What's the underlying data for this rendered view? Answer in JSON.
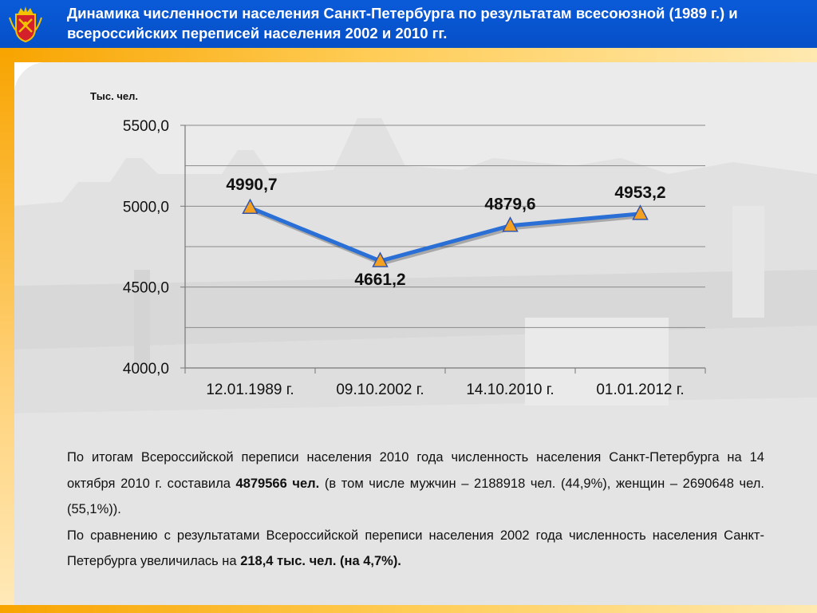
{
  "header": {
    "title": "Динамика численности населения Санкт-Петербурга по результатам всесоюзной (1989 г.) и всероссийских переписей населения 2002 и 2010 гг."
  },
  "colors": {
    "header_bg": "#0650c8",
    "accent_orange": "#f8a400",
    "line": "#2a6fd6",
    "marker_fill": "#f4a020"
  },
  "chart_data": {
    "type": "line",
    "unit_label": "Тыс. чел.",
    "categories": [
      "12.01.1989 г.",
      "09.10.2002 г.",
      "14.10.2010 г.",
      "01.01.2012 г."
    ],
    "values": [
      4990.7,
      4661.2,
      4879.6,
      4953.2
    ],
    "data_labels": [
      "4990,7",
      "4661,2",
      "4879,6",
      "4953,2"
    ],
    "ylim": [
      4000,
      5500
    ],
    "y_ticks": [
      "4000,0",
      "4500,0",
      "5000,0",
      "5500,0"
    ],
    "y_tick_values": [
      4000,
      4500,
      5000,
      5500
    ],
    "gridlines": true
  },
  "text": {
    "p1_a": "По итогам Всероссийской переписи населения 2010 года численность населения Санкт-Петербурга на 14 октября 2010 г. составила ",
    "p1_bold": "4879566 чел.",
    "p1_b": " (в том числе мужчин – 2188918 чел. (44,9%), женщин – 2690648 чел. (55,1%)).",
    "p2_a": "По сравнению с результатами Всероссийской переписи населения 2002 года численность населения Санкт-Петербурга увеличилась на ",
    "p2_bold": "218,4 тыс. чел. (на 4,7%)."
  }
}
